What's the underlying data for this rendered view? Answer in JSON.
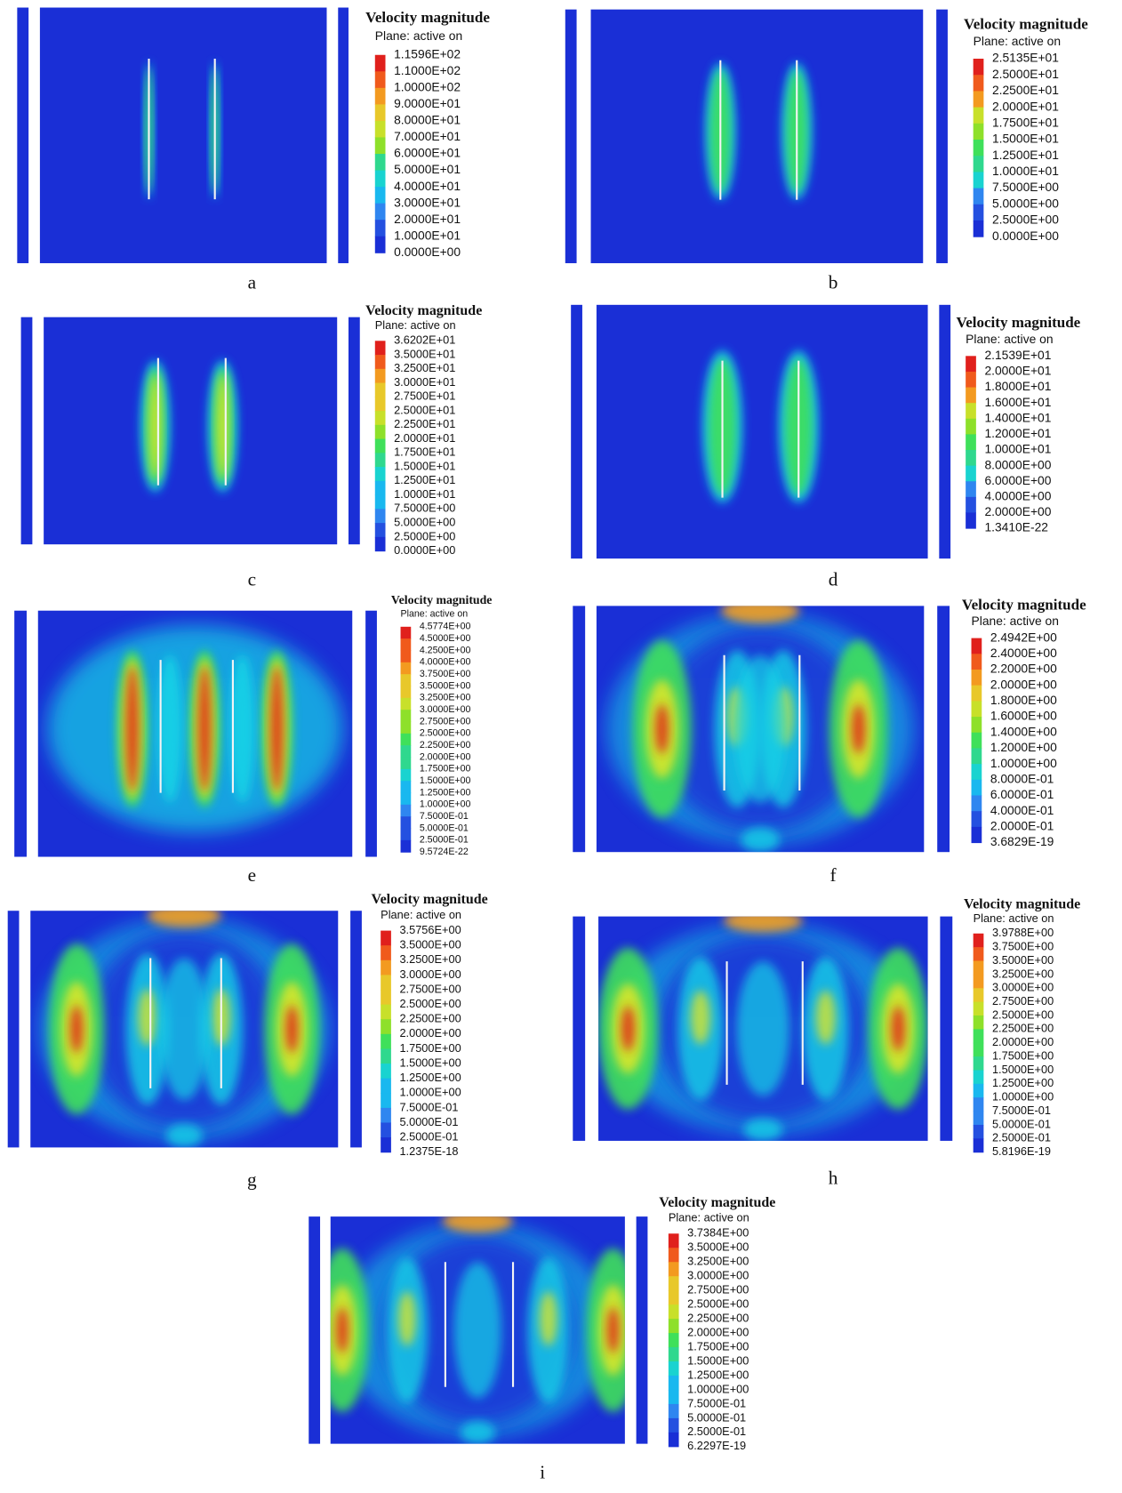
{
  "panels": [
    {
      "label": "a",
      "legend": {
        "title": "Velocity magnitude",
        "subtitle": "Plane: active on",
        "levels": [
          "1.1596E+02",
          "1.1000E+02",
          "1.0000E+02",
          "9.0000E+01",
          "8.0000E+01",
          "7.0000E+01",
          "6.0000E+01",
          "5.0000E+01",
          "4.0000E+01",
          "3.0000E+01",
          "2.0000E+01",
          "1.0000E+01",
          "0.0000E+00"
        ]
      }
    },
    {
      "label": "b",
      "legend": {
        "title": "Velocity magnitude",
        "subtitle": "Plane: active on",
        "levels": [
          "2.5135E+01",
          "2.5000E+01",
          "2.2500E+01",
          "2.0000E+01",
          "1.7500E+01",
          "1.5000E+01",
          "1.2500E+01",
          "1.0000E+01",
          "7.5000E+00",
          "5.0000E+00",
          "2.5000E+00",
          "0.0000E+00"
        ]
      }
    },
    {
      "label": "c",
      "legend": {
        "title": "Velocity magnitude",
        "subtitle": "Plane: active on",
        "levels": [
          "3.6202E+01",
          "3.5000E+01",
          "3.2500E+01",
          "3.0000E+01",
          "2.7500E+01",
          "2.5000E+01",
          "2.2500E+01",
          "2.0000E+01",
          "1.7500E+01",
          "1.5000E+01",
          "1.2500E+01",
          "1.0000E+01",
          "7.5000E+00",
          "5.0000E+00",
          "2.5000E+00",
          "0.0000E+00"
        ]
      }
    },
    {
      "label": "d",
      "legend": {
        "title": "Velocity magnitude",
        "subtitle": "Plane: active on",
        "levels": [
          "2.1539E+01",
          "2.0000E+01",
          "1.8000E+01",
          "1.6000E+01",
          "1.4000E+01",
          "1.2000E+01",
          "1.0000E+01",
          "8.0000E+00",
          "6.0000E+00",
          "4.0000E+00",
          "2.0000E+00",
          "1.3410E-22"
        ]
      }
    },
    {
      "label": "e",
      "legend": {
        "title": "Velocity magnitude",
        "subtitle": "Plane: active on",
        "levels": [
          "4.5774E+00",
          "4.5000E+00",
          "4.2500E+00",
          "4.0000E+00",
          "3.7500E+00",
          "3.5000E+00",
          "3.2500E+00",
          "3.0000E+00",
          "2.7500E+00",
          "2.5000E+00",
          "2.2500E+00",
          "2.0000E+00",
          "1.7500E+00",
          "1.5000E+00",
          "1.2500E+00",
          "1.0000E+00",
          "7.5000E-01",
          "5.0000E-01",
          "2.5000E-01",
          "9.5724E-22"
        ]
      }
    },
    {
      "label": "f",
      "legend": {
        "title": "Velocity magnitude",
        "subtitle": "Plane: active on",
        "levels": [
          "2.4942E+00",
          "2.4000E+00",
          "2.2000E+00",
          "2.0000E+00",
          "1.8000E+00",
          "1.6000E+00",
          "1.4000E+00",
          "1.2000E+00",
          "1.0000E+00",
          "8.0000E-01",
          "6.0000E-01",
          "4.0000E-01",
          "2.0000E-01",
          "3.6829E-19"
        ]
      }
    },
    {
      "label": "g",
      "legend": {
        "title": "Velocity magnitude",
        "subtitle": "Plane: active on",
        "levels": [
          "3.5756E+00",
          "3.5000E+00",
          "3.2500E+00",
          "3.0000E+00",
          "2.7500E+00",
          "2.5000E+00",
          "2.2500E+00",
          "2.0000E+00",
          "1.7500E+00",
          "1.5000E+00",
          "1.2500E+00",
          "1.0000E+00",
          "7.5000E-01",
          "5.0000E-01",
          "2.5000E-01",
          "1.2375E-18"
        ]
      }
    },
    {
      "label": "h",
      "legend": {
        "title": "Velocity magnitude",
        "subtitle": "Plane: active on",
        "levels": [
          "3.9788E+00",
          "3.7500E+00",
          "3.5000E+00",
          "3.2500E+00",
          "3.0000E+00",
          "2.7500E+00",
          "2.5000E+00",
          "2.2500E+00",
          "2.0000E+00",
          "1.7500E+00",
          "1.5000E+00",
          "1.2500E+00",
          "1.0000E+00",
          "7.5000E-01",
          "5.0000E-01",
          "2.5000E-01",
          "5.8196E-19"
        ]
      }
    },
    {
      "label": "i",
      "legend": {
        "title": "Velocity magnitude",
        "subtitle": "Plane: active on",
        "levels": [
          "3.7384E+00",
          "3.5000E+00",
          "3.2500E+00",
          "3.0000E+00",
          "2.7500E+00",
          "2.5000E+00",
          "2.2500E+00",
          "2.0000E+00",
          "1.7500E+00",
          "1.5000E+00",
          "1.2500E+00",
          "1.0000E+00",
          "7.5000E-01",
          "5.0000E-01",
          "2.5000E-01",
          "6.2297E-19"
        ]
      }
    }
  ]
}
